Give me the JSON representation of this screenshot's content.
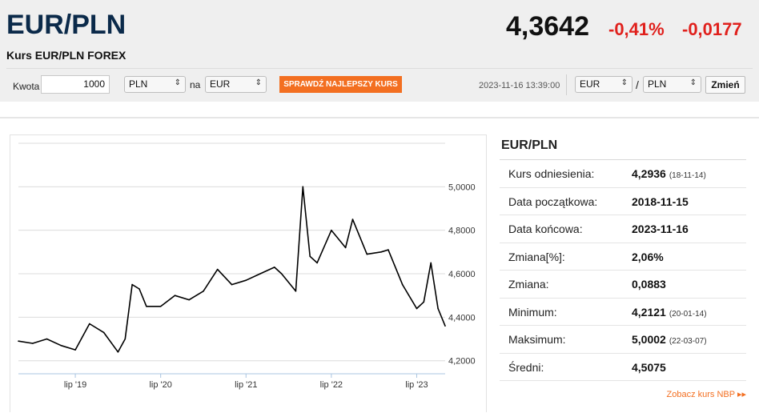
{
  "header": {
    "pair": "EUR/PLN",
    "subtitle": "Kurs EUR/PLN FOREX",
    "rate": "4,3642",
    "change_pct": "-0,41%",
    "change_abs": "-0,0177"
  },
  "converter": {
    "amount_label": "Kwota",
    "amount_value": "1000",
    "from_currency": "PLN",
    "to_label": "na",
    "to_currency": "EUR",
    "check_button": "SPRAWDŹ NAJLEPSZY KURS",
    "timestamp": "2023-11-16 13:39:00",
    "pair_from": "EUR",
    "slash": "/",
    "pair_to": "PLN",
    "change_button": "Zmień"
  },
  "stats": {
    "title": "EUR/PLN",
    "rows": [
      {
        "label": "Kurs odniesienia:",
        "value": "4,2936",
        "date": "(18-11-14)"
      },
      {
        "label": "Data początkowa:",
        "value": "2018-11-15",
        "date": ""
      },
      {
        "label": "Data końcowa:",
        "value": "2023-11-16",
        "date": ""
      },
      {
        "label": "Zmiana[%]:",
        "value": "2,06%",
        "date": ""
      },
      {
        "label": "Zmiana:",
        "value": "0,0883",
        "date": ""
      },
      {
        "label": "Minimum:",
        "value": "4,2121",
        "date": "(20-01-14)"
      },
      {
        "label": "Maksimum:",
        "value": "5,0002",
        "date": "(22-03-07)"
      },
      {
        "label": "Średni:",
        "value": "4,5075",
        "date": ""
      }
    ],
    "nbp_link": "Zobacz kurs NBP ▸▸"
  },
  "colors": {
    "accent": "#f36f21",
    "negative": "#e0201c",
    "title": "#0b2a4a"
  },
  "chart_data": {
    "type": "line",
    "x": [
      "2018-11",
      "2019-01",
      "2019-03",
      "2019-05",
      "2019-07",
      "2019-09",
      "2019-11",
      "2020-01",
      "2020-02",
      "2020-03",
      "2020-04",
      "2020-05",
      "2020-07",
      "2020-09",
      "2020-11",
      "2021-01",
      "2021-03",
      "2021-05",
      "2021-07",
      "2021-09",
      "2021-11",
      "2021-12",
      "2022-02",
      "2022-03",
      "2022-04",
      "2022-05",
      "2022-07",
      "2022-09",
      "2022-10",
      "2022-12",
      "2023-02",
      "2023-03",
      "2023-05",
      "2023-07",
      "2023-08",
      "2023-09",
      "2023-10",
      "2023-11"
    ],
    "series": [
      {
        "values": [
          4.29,
          4.28,
          4.3,
          4.27,
          4.25,
          4.37,
          4.33,
          4.24,
          4.3,
          4.55,
          4.53,
          4.45,
          4.45,
          4.5,
          4.48,
          4.52,
          4.62,
          4.55,
          4.57,
          4.6,
          4.63,
          4.6,
          4.52,
          5.0,
          4.68,
          4.65,
          4.8,
          4.72,
          4.85,
          4.69,
          4.7,
          4.71,
          4.55,
          4.44,
          4.47,
          4.65,
          4.44,
          4.36
        ]
      }
    ],
    "x_tick_labels": [
      "lip '19",
      "lip '20",
      "lip '21",
      "lip '22",
      "lip '23"
    ],
    "y_tick_labels": [
      "4,2000",
      "4,4000",
      "4,6000",
      "4,8000",
      "5,0000"
    ],
    "ylim": [
      4.14,
      5.2
    ],
    "grid": true
  }
}
